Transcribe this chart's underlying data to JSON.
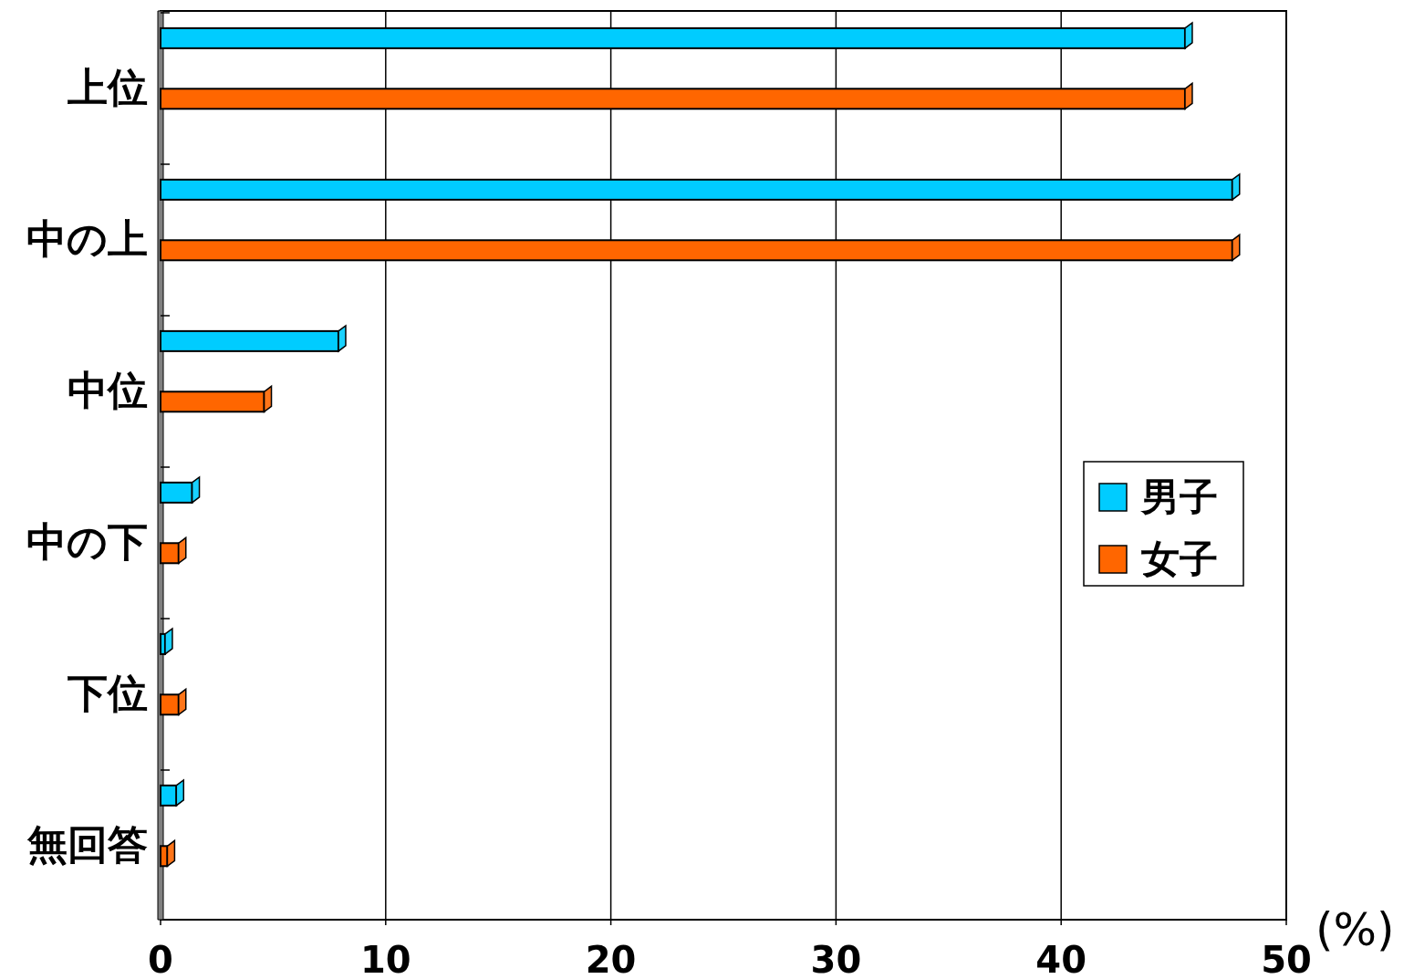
{
  "chart_data": {
    "type": "bar",
    "orientation": "horizontal",
    "categories": [
      "上位",
      "中の上",
      "中位",
      "中の下",
      "下位",
      "無回答"
    ],
    "series": [
      {
        "name": "男子",
        "color": "#00ccff",
        "values": [
          45.5,
          47.6,
          7.9,
          1.4,
          0.2,
          0.7
        ]
      },
      {
        "name": "女子",
        "color": "#ff6600",
        "values": [
          45.5,
          47.6,
          4.6,
          0.8,
          0.8,
          0.3
        ]
      }
    ],
    "xlim": [
      0,
      50
    ],
    "xticks": [
      0,
      10,
      20,
      30,
      40,
      50
    ],
    "xlabel": "(%)",
    "grid": "x",
    "legend": "right"
  }
}
